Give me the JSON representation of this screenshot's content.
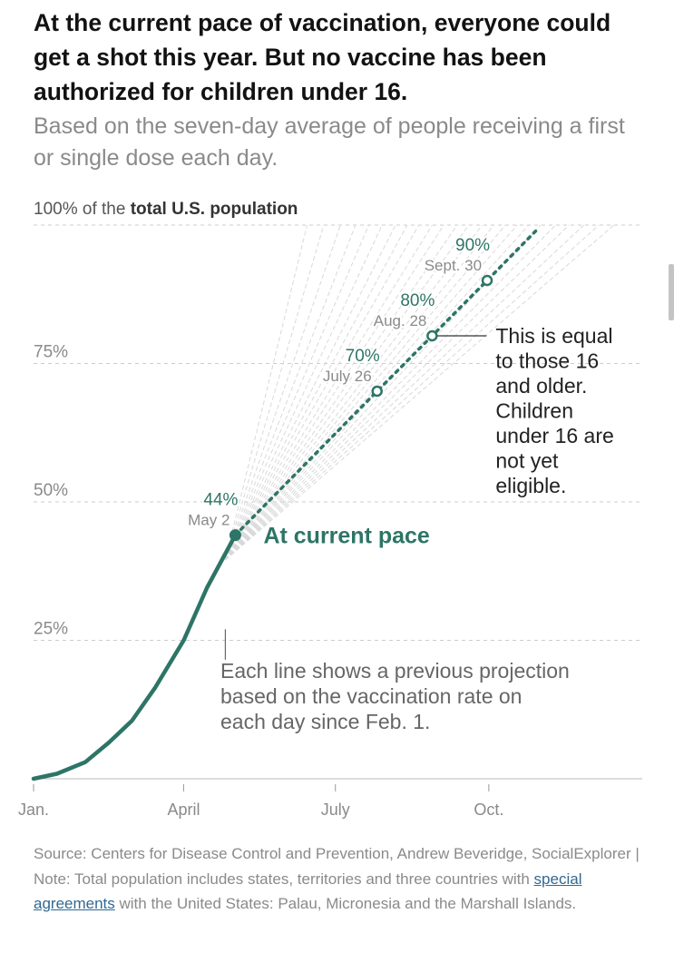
{
  "headline": "At the current pace of vaccination, everyone could get a shot this year. But no vaccine has been authorized for children under 16.",
  "subhead": "Based on the seven-day average of people receiving a first or single dose each day.",
  "colors": {
    "accent": "#2d7566",
    "projection_lines": "#d9d9d9",
    "grid": "#cccccc",
    "label_gray": "#8a8a8a",
    "text_dark": "#222222",
    "link": "#326891"
  },
  "chart_data": {
    "type": "line",
    "y_unit_label_prefix": "100% of the ",
    "y_unit_label_bold": "total U.S. population",
    "x_ticks": [
      {
        "label": "Jan.",
        "month": 0
      },
      {
        "label": "April",
        "month": 3
      },
      {
        "label": "July",
        "month": 6
      },
      {
        "label": "Oct.",
        "month": 9
      }
    ],
    "y_ticks": [
      {
        "label": "25%",
        "value": 25
      },
      {
        "label": "50%",
        "value": 50
      },
      {
        "label": "75%",
        "value": 75
      }
    ],
    "ylim": [
      0,
      100
    ],
    "grid": true,
    "series": [
      {
        "name": "",
        "style": "solid",
        "points": [
          {
            "date": "2021-01-01",
            "value": 0.0
          },
          {
            "date": "2021-01-15",
            "value": 0.9
          },
          {
            "date": "2021-02-01",
            "value": 3.0
          },
          {
            "date": "2021-02-15",
            "value": 6.5
          },
          {
            "date": "2021-03-01",
            "value": 10.5
          },
          {
            "date": "2021-03-15",
            "value": 16.5
          },
          {
            "date": "2021-04-01",
            "value": 25.0
          },
          {
            "date": "2021-04-15",
            "value": 34.5
          },
          {
            "date": "2021-05-02",
            "value": 44.0
          }
        ]
      },
      {
        "name": "At current pace",
        "style": "dotted",
        "points": [
          {
            "date": "2021-05-02",
            "value": 44
          },
          {
            "date": "2021-07-26",
            "value": 70
          },
          {
            "date": "2021-08-28",
            "value": 80
          },
          {
            "date": "2021-09-30",
            "value": 90
          },
          {
            "date": "2021-10-31",
            "value": 99.5
          }
        ]
      }
    ],
    "milestones": [
      {
        "pct_label": "44%",
        "date_label": "May 2",
        "date": "2021-05-02",
        "value": 44,
        "filled": true
      },
      {
        "pct_label": "70%",
        "date_label": "July 26",
        "date": "2021-07-26",
        "value": 70,
        "filled": false
      },
      {
        "pct_label": "80%",
        "date_label": "Aug. 28",
        "date": "2021-08-28",
        "value": 80,
        "filled": false
      },
      {
        "pct_label": "90%",
        "date_label": "Sept. 30",
        "date": "2021-09-30",
        "value": 90,
        "filled": false
      }
    ],
    "annotations": {
      "current_pace": "At current pace",
      "equal_note": [
        "This is equal",
        "to those 16",
        "and older.",
        "Children",
        "under 16 are",
        "not yet",
        "eligible."
      ],
      "projection_note": [
        "Each line shows a previous projection",
        "based on the vaccination rate on",
        "each day since Feb. 1."
      ]
    },
    "projection_end_dates": [
      "2021-06-14",
      "2021-06-24",
      "2021-07-04",
      "2021-07-13",
      "2021-07-21",
      "2021-07-29",
      "2021-08-06",
      "2021-08-13",
      "2021-08-20",
      "2021-08-28",
      "2021-09-04",
      "2021-09-12",
      "2021-09-19",
      "2021-09-27",
      "2021-10-04",
      "2021-10-11",
      "2021-10-18",
      "2021-10-25",
      "2021-11-01",
      "2021-11-10",
      "2021-11-18",
      "2021-11-27",
      "2021-12-06",
      "2021-12-15"
    ]
  },
  "footer": {
    "text_before_link": "Source: Centers for Disease Control and Prevention, Andrew Beveridge, SocialExplorer | Note: Total population includes states, territories and three countries with ",
    "link_text": "special agreements",
    "text_after_link": " with the United States: Palau, Micronesia and the Marshall Islands."
  }
}
